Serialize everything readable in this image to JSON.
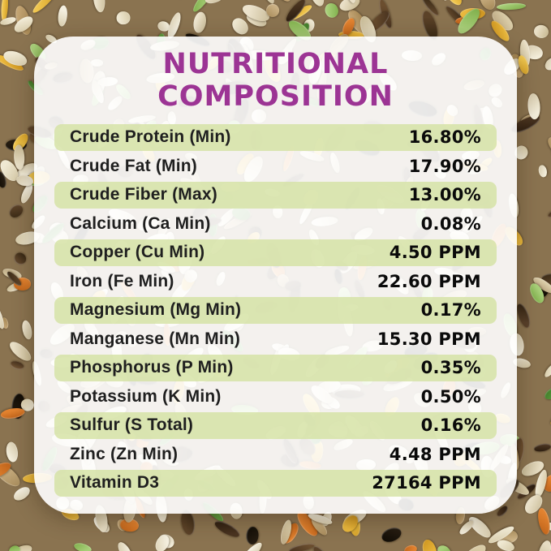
{
  "card": {
    "title_line1": "NUTRITIONAL",
    "title_line2": "COMPOSITION"
  },
  "table": {
    "rows": [
      {
        "label": "Crude Protein (Min)",
        "value": "16.80%"
      },
      {
        "label": "Crude Fat (Min)",
        "value": "17.90%"
      },
      {
        "label": "Crude Fiber (Max)",
        "value": "13.00%"
      },
      {
        "label": "Calcium (Ca Min)",
        "value": "0.08%"
      },
      {
        "label": "Copper (Cu Min)",
        "value": "4.50 PPM"
      },
      {
        "label": "Iron (Fe Min)",
        "value": "22.60 PPM"
      },
      {
        "label": "Magnesium (Mg Min)",
        "value": "0.17%"
      },
      {
        "label": "Manganese (Mn Min)",
        "value": "15.30 PPM"
      },
      {
        "label": "Phosphorus (P Min)",
        "value": "0.35%"
      },
      {
        "label": "Potassium (K Min)",
        "value": "0.50%"
      },
      {
        "label": "Sulfur (S Total)",
        "value": "0.16%"
      },
      {
        "label": "Zinc (Zn Min)",
        "value": "4.48 PPM"
      },
      {
        "label": "Vitamin D3",
        "value": "27164 PPM"
      }
    ]
  },
  "colors": {
    "title_purple": "#9c3494",
    "row_green": "#dfe8c2",
    "text_dark": "#1a1a1a",
    "card_white": "#ffffff"
  }
}
